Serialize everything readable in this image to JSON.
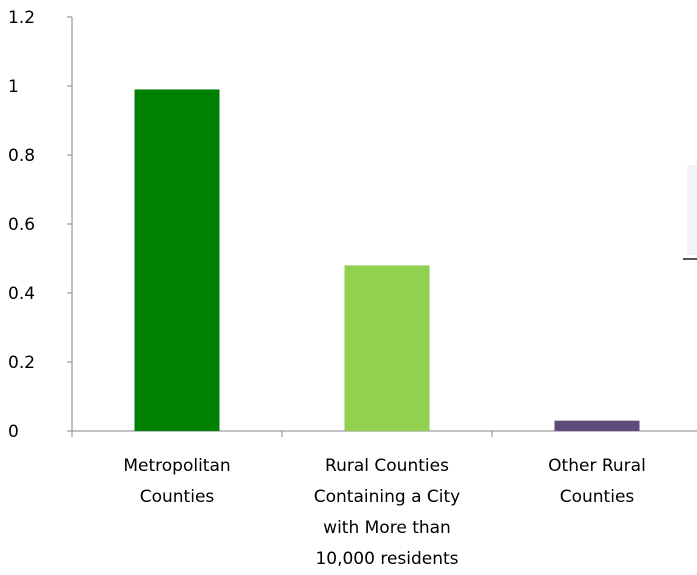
{
  "chart_data": {
    "type": "bar",
    "title": "",
    "xlabel": "",
    "ylabel": "",
    "ylim": [
      0,
      1.2
    ],
    "y_ticks": [
      "0",
      "0.2",
      "0.4",
      "0.6",
      "0.8",
      "1",
      "1.2"
    ],
    "categories": [
      [
        "Metropolitan",
        "Counties"
      ],
      [
        "Rural Counties",
        "Containing a City",
        "with More than",
        "10,000 residents"
      ],
      [
        "Other Rural",
        "Counties"
      ]
    ],
    "values": [
      0.99,
      0.48,
      0.03
    ],
    "bar_colors": [
      "#008000",
      "#92D050",
      "#604A7B"
    ],
    "grid": false,
    "legend": "none"
  }
}
